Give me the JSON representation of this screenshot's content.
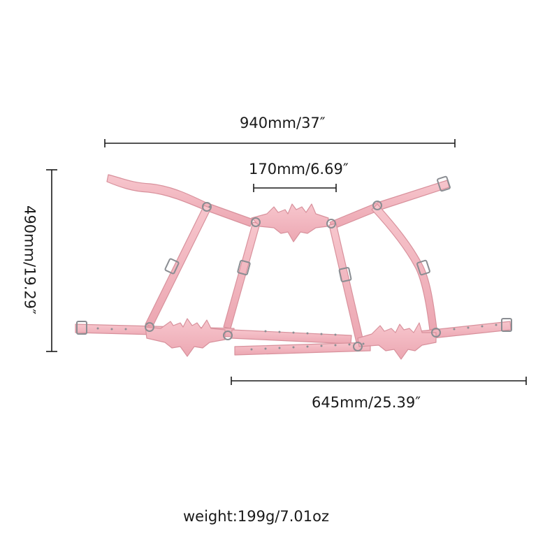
{
  "dimensions": {
    "overall_width": "940mm/37″",
    "center_width": "170mm/6.69″",
    "bottom_width": "645mm/25.39″",
    "height": "490mm/19.29″"
  },
  "weight": "weight:199g/7.01oz",
  "colors": {
    "strap_fill": "#f4b6bf",
    "strap_edge": "#dd8f9b",
    "hardware": "#b9bcc0",
    "hardware_edge": "#6e7075",
    "dimension_line": "#1a1a1a"
  }
}
